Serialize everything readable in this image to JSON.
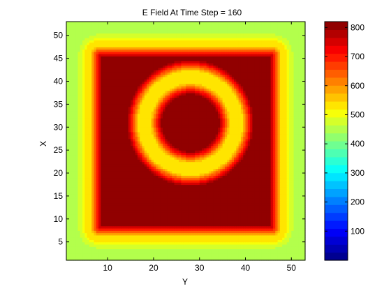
{
  "chart_data": {
    "type": "heatmap",
    "title": "E Field At Time Step = 160",
    "xlabel": "Y",
    "ylabel": "X",
    "xlim": [
      1,
      53
    ],
    "ylim": [
      1,
      53
    ],
    "x_ticks": [
      10,
      20,
      30,
      40,
      50
    ],
    "y_ticks": [
      5,
      10,
      15,
      20,
      25,
      30,
      35,
      40,
      45,
      50
    ],
    "colorbar": {
      "range": [
        0,
        820
      ],
      "ticks": [
        100,
        200,
        300,
        400,
        500,
        600,
        700,
        800
      ],
      "colormap": "jet",
      "levels": 30
    },
    "field_description": {
      "background_level": 440,
      "outer_square_ring": {
        "center": [
          27,
          27
        ],
        "half_size": 22,
        "corner_radius": 3,
        "peak_level": 520
      },
      "inner_circle_ring": {
        "center": [
          28,
          31
        ],
        "radius": 10,
        "peak_level": 520
      },
      "saturated_region_level": 820
    }
  }
}
